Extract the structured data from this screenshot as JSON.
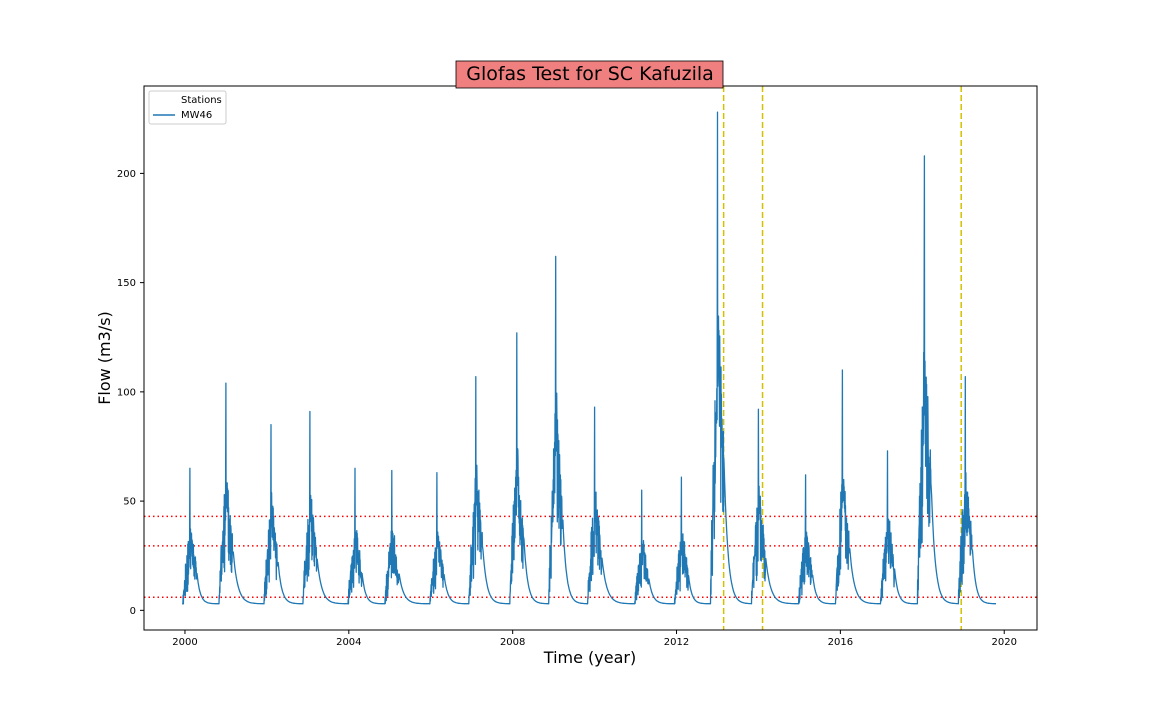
{
  "chart_data": {
    "type": "line",
    "title": "Glofas Test for SC Kafuzila",
    "title_background": "#f08080",
    "xlabel": "Time (year)",
    "ylabel": "Flow (m3/s)",
    "xlim": [
      1999.0,
      2020.8
    ],
    "ylim": [
      -9,
      240
    ],
    "xticks": [
      2000,
      2004,
      2008,
      2012,
      2016,
      2020
    ],
    "yticks": [
      0,
      50,
      100,
      150,
      200
    ],
    "grid": false,
    "legend": {
      "title": "Stations",
      "placement": "top-left",
      "entries": [
        "MW46"
      ]
    },
    "series": [
      {
        "name": "MW46",
        "color": "#1f77b4",
        "baseflow": 3,
        "peaks": [
          [
            2000.12,
            65
          ],
          [
            2001.0,
            104
          ],
          [
            2002.1,
            85
          ],
          [
            2003.05,
            91
          ],
          [
            2004.15,
            65
          ],
          [
            2005.05,
            64
          ],
          [
            2006.15,
            63
          ],
          [
            2007.1,
            107
          ],
          [
            2008.1,
            127
          ],
          [
            2009.05,
            162
          ],
          [
            2010.0,
            93
          ],
          [
            2011.15,
            55
          ],
          [
            2012.12,
            61
          ],
          [
            2013.0,
            228
          ],
          [
            2014.0,
            92
          ],
          [
            2015.15,
            62
          ],
          [
            2016.05,
            110
          ],
          [
            2017.15,
            73
          ],
          [
            2018.05,
            208
          ],
          [
            2019.05,
            107
          ]
        ]
      }
    ],
    "threshold_lines": {
      "color": "#ff0000",
      "style": "dotted",
      "values": [
        43,
        29.5,
        6
      ]
    },
    "event_lines": {
      "color": "#d4c000",
      "style": "dashed",
      "x": [
        2013.15,
        2014.1,
        2018.95
      ]
    }
  }
}
